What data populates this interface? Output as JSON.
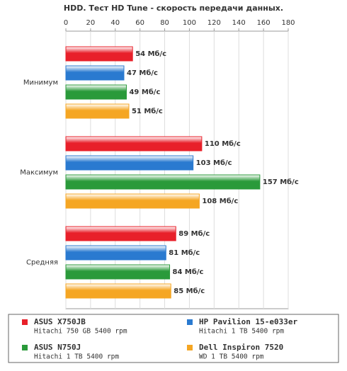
{
  "chart_data": {
    "type": "bar",
    "orientation": "horizontal",
    "title": "HDD. Тест HD Tune - скорость передачи данных.",
    "categories": [
      "Минимум",
      "Максимум",
      "Средняя"
    ],
    "xlim": [
      0,
      180
    ],
    "xticks": [
      0,
      20,
      40,
      60,
      80,
      100,
      120,
      140,
      160,
      180
    ],
    "grid": true,
    "series": [
      {
        "name": "ASUS X750JB",
        "description": "Hitachi 750 GB 5400 rpm",
        "color": "#e8202a",
        "values": [
          54,
          110,
          89
        ],
        "value_labels": [
          "54 Мб/с",
          "110 Мб/с",
          "89 Мб/с"
        ]
      },
      {
        "name": "HP Pavilion 15-e033er",
        "description": "Hitachi 1 TB 5400 rpm",
        "color": "#2a7ad0",
        "values": [
          47,
          103,
          81
        ],
        "value_labels": [
          "47 Мб/с",
          "103 Мб/с",
          "81 Мб/с"
        ]
      },
      {
        "name": "ASUS N750J",
        "description": "Hitachi 1 TB 5400 rpm",
        "color": "#2a9a3a",
        "values": [
          49,
          157,
          84
        ],
        "value_labels": [
          "49 Мб/с",
          "157 Мб/с",
          "84 Мб/с"
        ]
      },
      {
        "name": "Dell Inspiron 7520",
        "description": "WD 1 TB 5400 rpm",
        "color": "#f5a623",
        "values": [
          51,
          108,
          85
        ],
        "value_labels": [
          "51 Мб/с",
          "108 Мб/с",
          "85 Мб/с"
        ]
      }
    ]
  }
}
